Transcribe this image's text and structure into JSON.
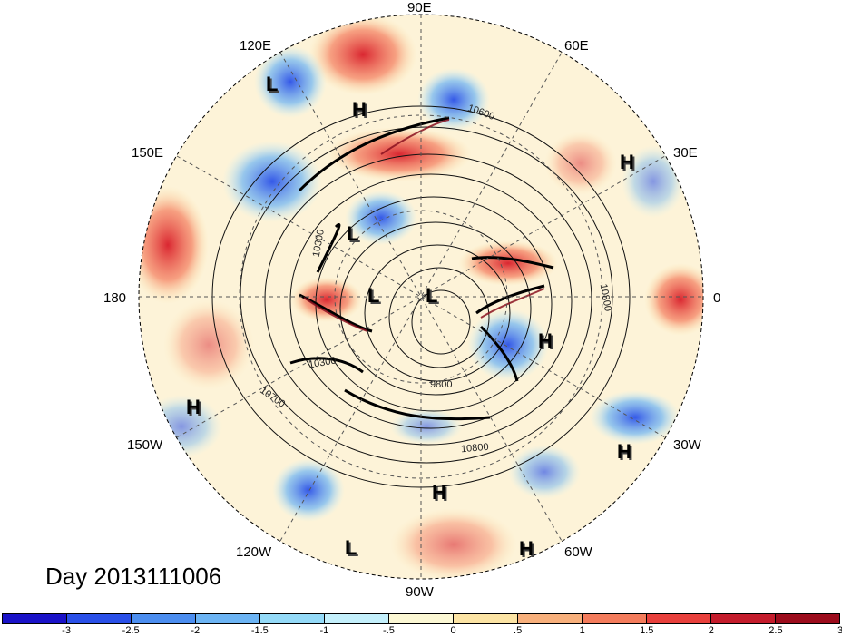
{
  "title": "Day 2013111006",
  "longitude_labels": [
    {
      "label": "90E",
      "pos": "top"
    },
    {
      "label": "60E",
      "pos": "top-right"
    },
    {
      "label": "30E",
      "pos": "right-upper"
    },
    {
      "label": "0",
      "pos": "right"
    },
    {
      "label": "30W",
      "pos": "right-lower"
    },
    {
      "label": "60W",
      "pos": "bottom-right"
    },
    {
      "label": "90W",
      "pos": "bottom"
    },
    {
      "label": "120W",
      "pos": "bottom-left"
    },
    {
      "label": "150W",
      "pos": "left-lower"
    },
    {
      "label": "180",
      "pos": "left"
    },
    {
      "label": "150E",
      "pos": "left-upper"
    },
    {
      "label": "120E",
      "pos": "top-left"
    }
  ],
  "pressure_centers": [
    {
      "label": "L",
      "region": "east-asia"
    },
    {
      "label": "H",
      "region": "siberia"
    },
    {
      "label": "H",
      "region": "europe"
    },
    {
      "label": "L",
      "region": "north-pacific"
    },
    {
      "label": "L",
      "region": "arctic-west"
    },
    {
      "label": "L",
      "region": "arctic-center"
    },
    {
      "label": "H",
      "region": "north-atlantic"
    },
    {
      "label": "H",
      "region": "subtropical-pacific"
    },
    {
      "label": "H",
      "region": "subtropical-atlantic"
    },
    {
      "label": "H",
      "region": "gulf-of-mexico"
    },
    {
      "label": "L",
      "region": "east-pacific"
    },
    {
      "label": "H",
      "region": "caribbean"
    }
  ],
  "contour_labels": [
    "10600",
    "10800",
    "10300",
    "10700",
    "9800",
    "10800",
    "10300"
  ],
  "colorbar": {
    "colors": [
      "#1a12c8",
      "#2a50e8",
      "#4c8ef0",
      "#6cb4f4",
      "#94daf8",
      "#c4f0fc",
      "#fcf8d4",
      "#fce4a4",
      "#f8b07c",
      "#f47c5c",
      "#e8403c",
      "#c41c2c",
      "#9c0c1c"
    ],
    "ticks": [
      "-3",
      "-2.5",
      "-2",
      "-1.5",
      "-1",
      "-.5",
      "0",
      ".5",
      "1",
      "1.5",
      "2",
      "2.5",
      "3"
    ]
  }
}
